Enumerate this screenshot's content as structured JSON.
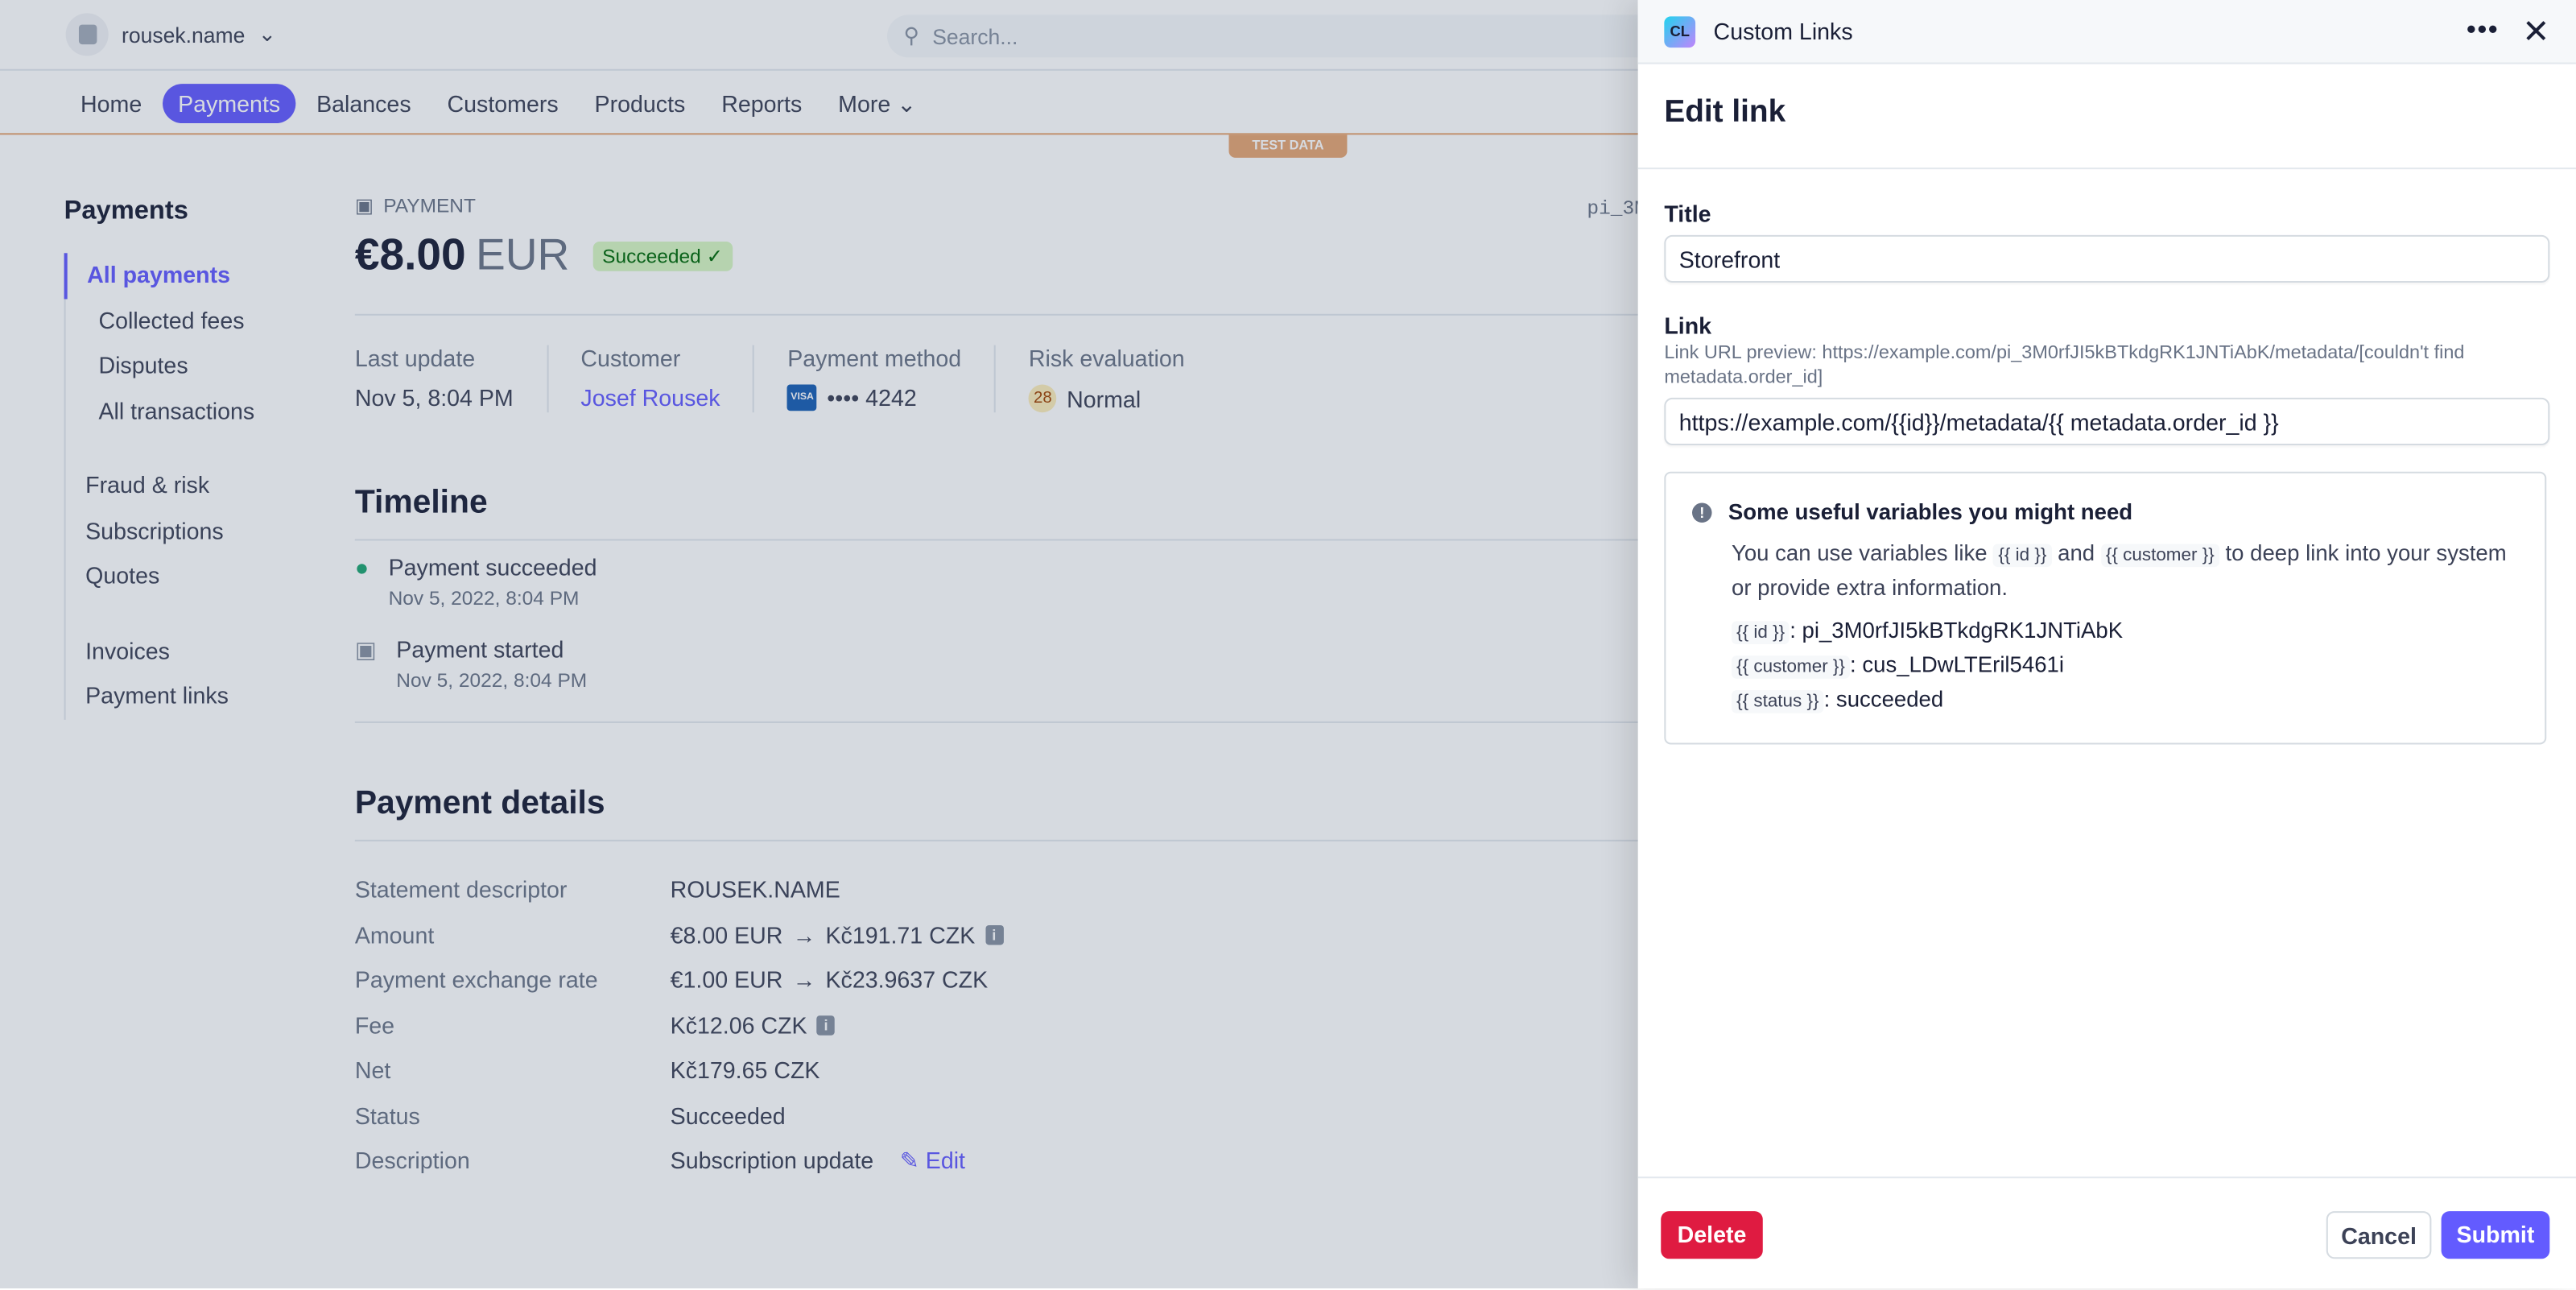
{
  "topbar": {
    "account": "rousek.name",
    "search_placeholder": "Search..."
  },
  "nav": {
    "items": [
      "Home",
      "Payments",
      "Balances",
      "Customers",
      "Products",
      "Reports",
      "More"
    ],
    "active": "Payments",
    "test_badge": "TEST DATA"
  },
  "sidebar": {
    "title": "Payments",
    "items": [
      "All payments",
      "Collected fees",
      "Disputes",
      "All transactions"
    ],
    "items2": [
      "Fraud & risk",
      "Subscriptions",
      "Quotes"
    ],
    "items3": [
      "Invoices",
      "Payment links"
    ]
  },
  "payment": {
    "kicker": "PAYMENT",
    "id_partial": "pi_3M",
    "amount": "€8.00",
    "currency": "EUR",
    "status": "Succeeded",
    "stats": [
      {
        "label": "Last update",
        "value": "Nov 5, 8:04 PM"
      },
      {
        "label": "Customer",
        "value": "Josef Rousek"
      },
      {
        "label": "Payment method",
        "value": "•••• 4242",
        "brand": "VISA"
      },
      {
        "label": "Risk evaluation",
        "value": "Normal",
        "score": "28"
      }
    ]
  },
  "timeline": {
    "title": "Timeline",
    "events": [
      {
        "label": "Payment succeeded",
        "date": "Nov 5, 2022, 8:04 PM"
      },
      {
        "label": "Payment started",
        "date": "Nov 5, 2022, 8:04 PM"
      }
    ]
  },
  "details": {
    "title": "Payment details",
    "rows": [
      {
        "k": "Statement descriptor",
        "v": "ROUSEK.NAME"
      },
      {
        "k": "Amount",
        "v": "€8.00 EUR",
        "v2": "Kč191.71 CZK"
      },
      {
        "k": "Payment exchange rate",
        "v": "€1.00 EUR",
        "v2": "Kč23.9637 CZK"
      },
      {
        "k": "Fee",
        "v": "Kč12.06 CZK"
      },
      {
        "k": "Net",
        "v": "Kč179.65 CZK"
      },
      {
        "k": "Status",
        "v": "Succeeded"
      },
      {
        "k": "Description",
        "v": "Subscription update",
        "edit": "Edit"
      }
    ]
  },
  "panel": {
    "app_icon": "CL",
    "app_name": "Custom Links",
    "heading": "Edit link",
    "title_label": "Title",
    "title_value": "Storefront",
    "link_label": "Link",
    "preview": "Link URL preview: https://example.com/pi_3M0rfJI5kBTkdgRK1JNTiAbK/metadata/[couldn't find metadata.order_id]",
    "link_value": "https://example.com/{{id}}/metadata/{{ metadata.order_id }}",
    "help": {
      "title": "Some useful variables you might need",
      "t1": "You can use variables like",
      "c1": "{{ id }}",
      "t2": "and",
      "c2": "{{ customer }}",
      "t3": "to deep link into your system or provide extra information.",
      "vars": [
        {
          "name": "{{ id }}",
          "value": ": pi_3M0rfJI5kBTkdgRK1JNTiAbK"
        },
        {
          "name": "{{ customer }}",
          "value": ": cus_LDwLTEril5461i"
        },
        {
          "name": "{{ status }}",
          "value": ": succeeded"
        }
      ]
    },
    "delete": "Delete",
    "cancel": "Cancel",
    "submit": "Submit"
  },
  "colors": {
    "accent": "#635bff",
    "danger": "#df1b41",
    "test": "#e5a574"
  }
}
